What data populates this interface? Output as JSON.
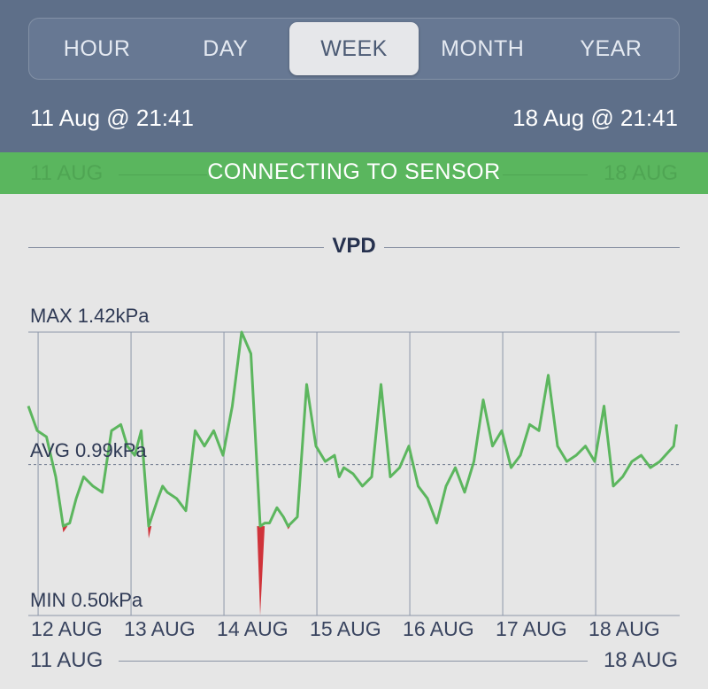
{
  "tabs": [
    {
      "label": "HOUR",
      "active": false
    },
    {
      "label": "DAY",
      "active": false
    },
    {
      "label": "WEEK",
      "active": true
    },
    {
      "label": "MONTH",
      "active": false
    },
    {
      "label": "YEAR",
      "active": false
    }
  ],
  "range": {
    "start": "11 Aug @ 21:41",
    "end": "18 Aug @ 21:41"
  },
  "banner": {
    "message": "CONNECTING TO SENSOR",
    "ghost_start": "11 AUG",
    "ghost_end": "18 AUG"
  },
  "chart_title": "VPD",
  "stats": {
    "max": "MAX 1.42kPa",
    "avg": "AVG 0.99kPa",
    "min": "MIN 0.50kPa"
  },
  "colors": {
    "line": "#5cb65e",
    "below": "#d0333a",
    "header": "#5e6f89",
    "banner": "#5ab65e"
  },
  "scrubber": {
    "start": "11 AUG",
    "end": "18 AUG"
  },
  "chart_data": {
    "type": "line",
    "ylim": [
      0.5,
      1.42
    ],
    "avg": 0.99,
    "threshold": 0.79,
    "xlim": [
      0,
      7
    ],
    "x_ticks": [
      {
        "label": "12 AUG",
        "x": 0.01
      },
      {
        "label": "13 AUG",
        "x": 1.01
      },
      {
        "label": "14 AUG",
        "x": 2.01
      },
      {
        "label": "15 AUG",
        "x": 3.01
      },
      {
        "label": "16 AUG",
        "x": 4.01
      },
      {
        "label": "17 AUG",
        "x": 5.01
      },
      {
        "label": "18 AUG",
        "x": 6.01
      }
    ],
    "series": [
      {
        "x": [
          -0.1,
          0,
          0.1,
          0.2,
          0.28,
          0.35,
          0.42,
          0.5,
          0.6,
          0.7,
          0.8,
          0.9,
          0.97,
          1.05,
          1.12,
          1.2,
          1.3,
          1.35,
          1.4,
          1.5,
          1.6,
          1.7,
          1.8,
          1.9,
          2.0,
          2.1,
          2.2,
          2.3,
          2.4,
          2.45,
          2.5,
          2.58,
          2.65,
          2.7,
          2.8,
          2.9,
          3.0,
          3.1,
          3.2,
          3.25,
          3.3,
          3.4,
          3.5,
          3.6,
          3.7,
          3.8,
          3.9,
          4.0,
          4.1,
          4.2,
          4.3,
          4.4,
          4.5,
          4.6,
          4.7,
          4.8,
          4.9,
          5.0,
          5.1,
          5.2,
          5.3,
          5.4,
          5.5,
          5.6,
          5.7,
          5.8,
          5.9,
          6.0,
          6.1,
          6.2,
          6.3,
          6.4,
          6.5,
          6.6,
          6.7,
          6.85,
          6.88
        ],
        "y": [
          1.18,
          1.1,
          1.08,
          0.95,
          0.77,
          0.8,
          0.88,
          0.95,
          0.92,
          0.9,
          1.1,
          1.12,
          1.05,
          1.02,
          1.1,
          0.75,
          0.88,
          0.92,
          0.9,
          0.88,
          0.84,
          1.1,
          1.05,
          1.1,
          1.02,
          1.18,
          1.42,
          1.35,
          0.5,
          0.8,
          0.8,
          0.85,
          0.82,
          0.78,
          0.82,
          1.25,
          1.05,
          1.0,
          1.02,
          0.95,
          0.98,
          0.96,
          0.92,
          0.95,
          1.25,
          0.95,
          0.98,
          1.05,
          0.92,
          0.88,
          0.8,
          0.92,
          0.98,
          0.9,
          1.0,
          1.2,
          1.05,
          1.1,
          0.98,
          1.02,
          1.12,
          1.1,
          1.28,
          1.05,
          1.0,
          1.02,
          1.05,
          1.0,
          1.18,
          0.92,
          0.95,
          1.0,
          1.02,
          0.98,
          1.0,
          1.05,
          1.12
        ]
      }
    ]
  }
}
